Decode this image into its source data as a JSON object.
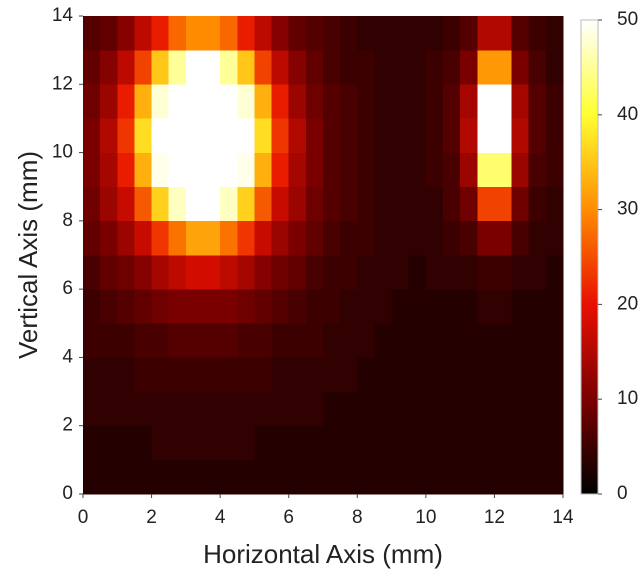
{
  "chart_data": {
    "type": "heatmap",
    "xlabel": "Horizontal Axis (mm)",
    "ylabel": "Vertical Axis (mm)",
    "xlim": [
      0,
      14
    ],
    "ylim": [
      0,
      14
    ],
    "xticks": [
      0,
      2,
      4,
      6,
      8,
      10,
      12,
      14
    ],
    "yticks": [
      0,
      2,
      4,
      6,
      8,
      10,
      12,
      14
    ],
    "clim": [
      0,
      50
    ],
    "cticks": [
      0,
      10,
      20,
      30,
      40,
      50
    ],
    "colormap": [
      "#000000",
      "#7a0000",
      "#e81000",
      "#ff8c00",
      "#ffff30",
      "#ffffff"
    ],
    "values": [
      [
        3,
        3,
        3,
        3,
        3,
        3,
        3,
        3,
        3,
        3,
        3,
        3,
        3,
        3,
        3,
        3,
        3,
        3,
        3,
        3,
        3,
        3,
        3,
        3,
        3,
        3,
        3,
        3
      ],
      [
        3,
        3,
        3,
        3,
        4,
        4,
        4,
        4,
        4,
        4,
        3,
        3,
        3,
        3,
        3,
        3,
        3,
        3,
        3,
        3,
        3,
        3,
        3,
        3,
        3,
        3,
        3,
        3
      ],
      [
        4,
        4,
        4,
        4,
        4,
        4,
        4,
        4,
        4,
        4,
        4,
        4,
        4,
        4,
        3,
        3,
        3,
        3,
        3,
        3,
        3,
        3,
        3,
        3,
        3,
        3,
        3,
        3
      ],
      [
        4,
        4,
        4,
        5,
        5,
        5,
        5,
        5,
        5,
        5,
        5,
        4,
        4,
        4,
        4,
        4,
        3,
        3,
        3,
        3,
        3,
        3,
        3,
        3,
        3,
        3,
        3,
        3
      ],
      [
        5,
        5,
        5,
        6,
        6,
        7,
        7,
        7,
        7,
        6,
        6,
        5,
        5,
        5,
        4,
        4,
        4,
        3,
        3,
        3,
        3,
        3,
        3,
        3,
        3,
        3,
        3,
        3
      ],
      [
        5,
        6,
        7,
        8,
        9,
        10,
        10,
        10,
        10,
        9,
        8,
        7,
        6,
        5,
        5,
        4,
        4,
        4,
        3,
        3,
        3,
        3,
        3,
        4,
        4,
        3,
        3,
        3
      ],
      [
        6,
        8,
        9,
        11,
        14,
        16,
        18,
        18,
        16,
        14,
        11,
        9,
        8,
        6,
        5,
        5,
        4,
        4,
        4,
        3,
        4,
        4,
        4,
        5,
        5,
        4,
        4,
        3
      ],
      [
        8,
        10,
        13,
        17,
        23,
        28,
        32,
        32,
        28,
        23,
        17,
        13,
        10,
        8,
        6,
        5,
        5,
        4,
        4,
        4,
        4,
        5,
        6,
        10,
        10,
        6,
        4,
        4
      ],
      [
        9,
        13,
        17,
        26,
        36,
        47,
        53,
        53,
        47,
        36,
        26,
        17,
        13,
        9,
        7,
        6,
        5,
        4,
        4,
        4,
        4,
        6,
        9,
        24,
        24,
        9,
        5,
        4
      ],
      [
        10,
        14,
        21,
        33,
        49,
        65,
        75,
        75,
        65,
        49,
        33,
        21,
        14,
        10,
        7,
        6,
        5,
        4,
        4,
        4,
        5,
        6,
        13,
        43,
        43,
        13,
        6,
        5
      ],
      [
        10,
        15,
        23,
        37,
        54,
        72,
        83,
        83,
        72,
        54,
        37,
        23,
        15,
        10,
        7,
        6,
        5,
        4,
        4,
        4,
        5,
        7,
        15,
        57,
        57,
        15,
        7,
        5
      ],
      [
        9,
        13,
        21,
        33,
        48,
        64,
        74,
        74,
        64,
        48,
        33,
        21,
        13,
        9,
        7,
        6,
        5,
        4,
        4,
        4,
        5,
        7,
        14,
        50,
        50,
        14,
        7,
        5
      ],
      [
        8,
        11,
        16,
        24,
        35,
        45,
        52,
        52,
        45,
        35,
        24,
        16,
        11,
        8,
        6,
        5,
        5,
        4,
        4,
        4,
        5,
        6,
        10,
        31,
        31,
        10,
        6,
        4
      ],
      [
        7,
        8,
        11,
        16,
        21,
        27,
        30,
        30,
        27,
        21,
        16,
        11,
        8,
        7,
        6,
        5,
        4,
        4,
        4,
        4,
        4,
        5,
        7,
        15,
        15,
        7,
        5,
        4
      ]
    ]
  }
}
